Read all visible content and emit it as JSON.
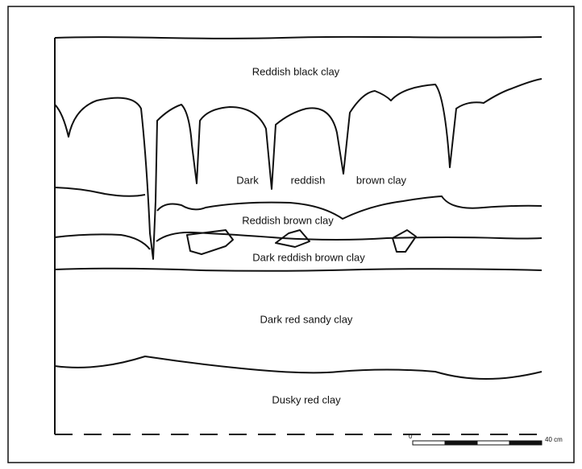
{
  "labels": [
    "Reddish black clay",
    "Dark",
    "reddish",
    "brown clay",
    "Reddish brown clay",
    "Dark reddish brown clay",
    "Dark red sandy clay",
    "Dusky red clay"
  ],
  "scale": {
    "start": "0",
    "end": "40 cm"
  }
}
